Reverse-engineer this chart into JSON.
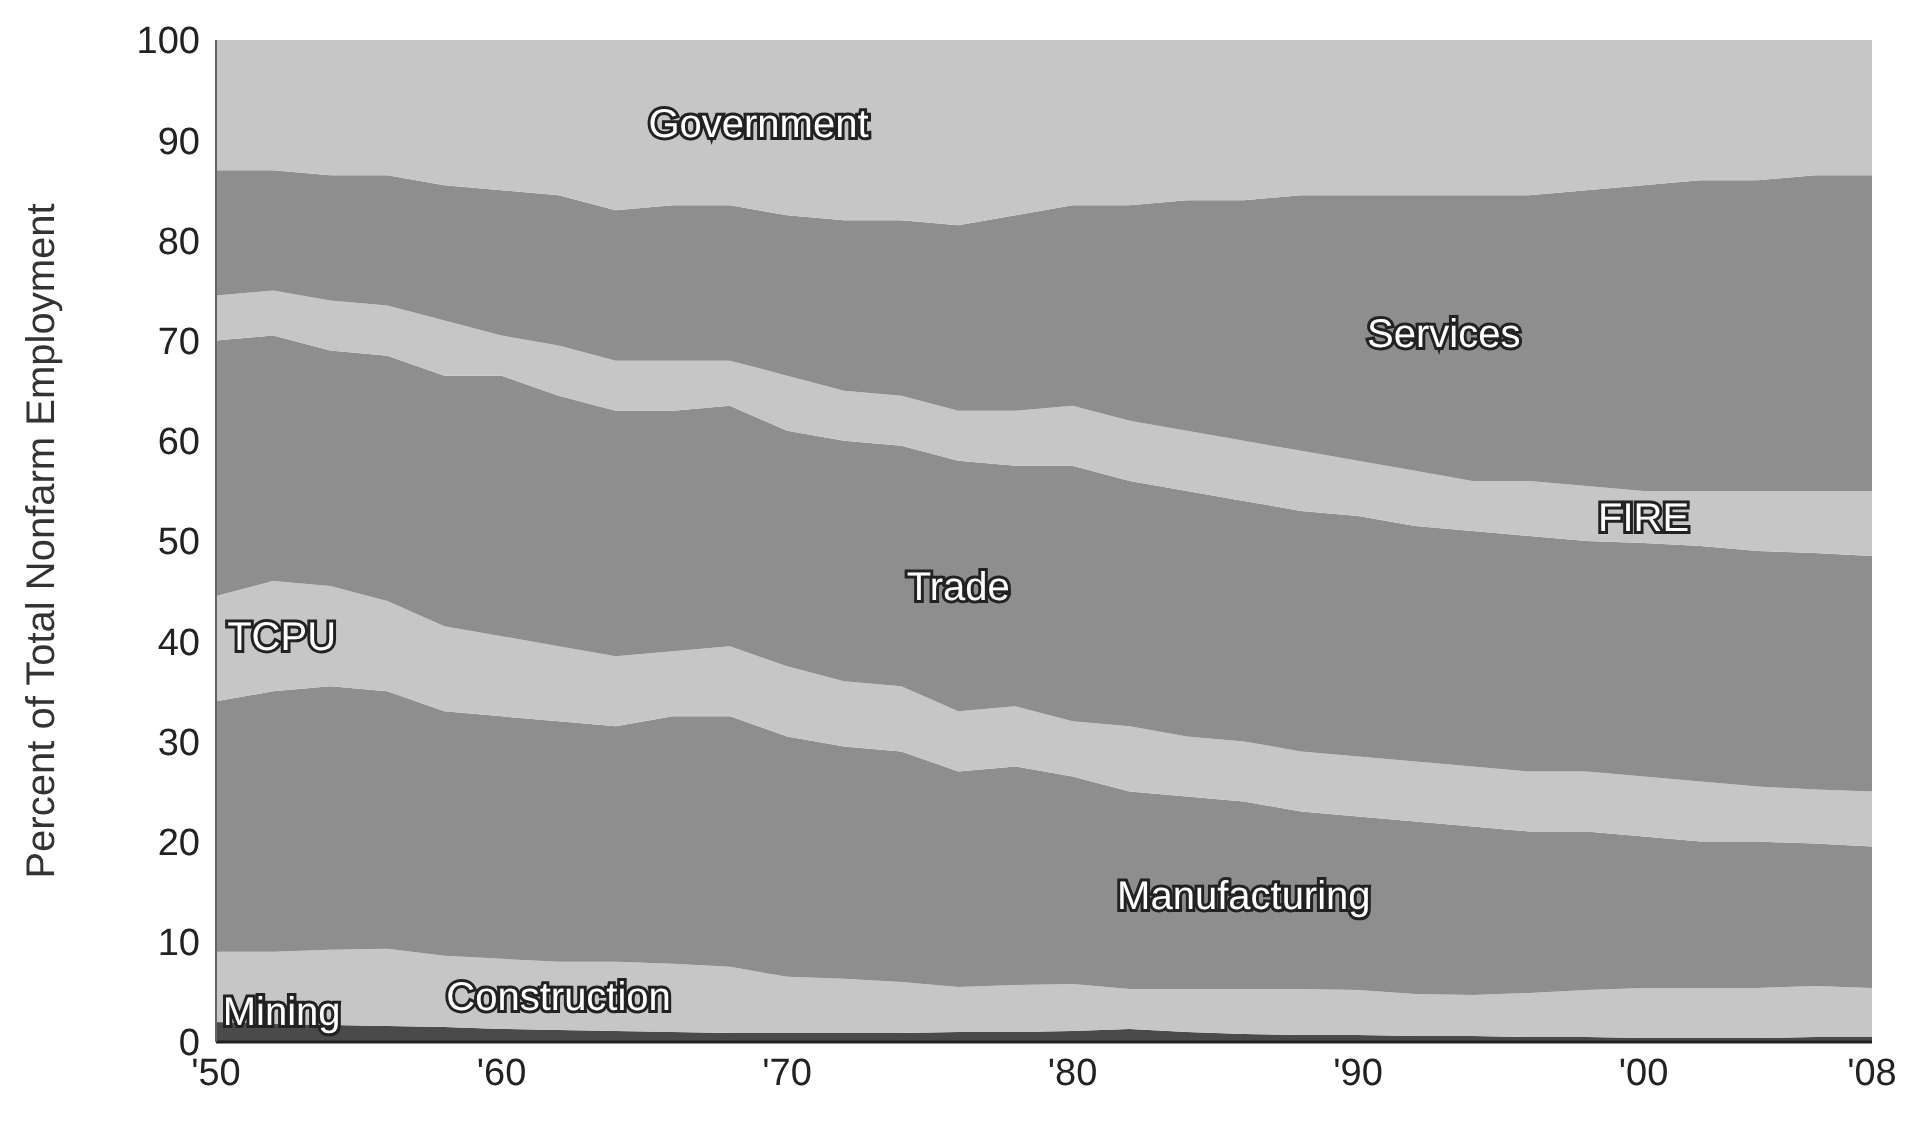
{
  "chart_data": {
    "type": "area",
    "stacked": true,
    "ylabel": "Percent of Total Nonfarm Employment",
    "x": [
      1950,
      1952,
      1954,
      1956,
      1958,
      1960,
      1962,
      1964,
      1966,
      1968,
      1970,
      1972,
      1974,
      1976,
      1978,
      1980,
      1982,
      1984,
      1986,
      1988,
      1990,
      1992,
      1994,
      1996,
      1998,
      2000,
      2002,
      2004,
      2006,
      2008
    ],
    "series": [
      {
        "name": "Mining",
        "color": "#4a4a4a",
        "values": [
          2.0,
          1.8,
          1.7,
          1.6,
          1.5,
          1.3,
          1.2,
          1.1,
          1.0,
          0.9,
          0.9,
          0.9,
          0.9,
          1.0,
          1.0,
          1.1,
          1.3,
          1.0,
          0.8,
          0.7,
          0.7,
          0.6,
          0.6,
          0.5,
          0.5,
          0.4,
          0.4,
          0.4,
          0.5,
          0.5
        ]
      },
      {
        "name": "Construction",
        "color": "#c6c6c6",
        "values": [
          7.0,
          7.2,
          7.5,
          7.7,
          7.1,
          7.0,
          6.8,
          6.9,
          6.8,
          6.6,
          5.6,
          5.4,
          5.1,
          4.5,
          4.7,
          4.7,
          4.0,
          4.3,
          4.5,
          4.6,
          4.5,
          4.2,
          4.1,
          4.4,
          4.7,
          5.0,
          5.0,
          5.0,
          5.1,
          4.9
        ]
      },
      {
        "name": "Manufacturing",
        "color": "#8e8e8e",
        "values": [
          25,
          26,
          26.3,
          25.7,
          24.4,
          24.2,
          24,
          23.5,
          24.7,
          25,
          24,
          23.2,
          23,
          21.5,
          21.8,
          20.7,
          19.7,
          19.2,
          18.7,
          17.7,
          17.3,
          17.2,
          16.8,
          16.1,
          15.8,
          15.1,
          14.6,
          14.6,
          14.2,
          14.1
        ]
      },
      {
        "name": "TCPU",
        "color": "#c6c6c6",
        "values": [
          10.5,
          11,
          10,
          9,
          8.5,
          8,
          7.5,
          7,
          6.5,
          7,
          7,
          6.5,
          6.5,
          6,
          6,
          5.5,
          6.5,
          6,
          6,
          6,
          6,
          6,
          6,
          6,
          6,
          6,
          6,
          5.5,
          5.4,
          5.5
        ]
      },
      {
        "name": "Trade",
        "color": "#8e8e8e",
        "values": [
          25.5,
          24.5,
          23.5,
          24.5,
          25,
          26,
          25,
          24.5,
          24,
          24,
          23.5,
          24,
          24,
          25,
          24,
          25.5,
          24.5,
          24.5,
          24,
          24,
          24,
          23.5,
          23.5,
          23.5,
          23,
          23.3,
          23.5,
          23.5,
          23.6,
          23.5
        ]
      },
      {
        "name": "FIRE",
        "color": "#c6c6c6",
        "values": [
          4.5,
          4.5,
          5,
          5,
          5.5,
          4,
          5,
          5,
          5,
          4.5,
          5.5,
          5,
          5,
          5,
          5.5,
          6,
          6,
          6,
          6,
          6,
          5.5,
          5.5,
          5,
          5.5,
          5.5,
          5.2,
          5.5,
          6,
          6.2,
          6.5
        ]
      },
      {
        "name": "Services",
        "color": "#8e8e8e",
        "values": [
          12.5,
          12,
          12.5,
          13,
          13.5,
          14.5,
          15,
          15,
          15.5,
          15.5,
          16,
          17,
          17.5,
          18.5,
          19.5,
          20,
          21.5,
          23,
          24,
          25.5,
          26.5,
          27.5,
          28.5,
          28.5,
          29.5,
          30.5,
          31,
          31,
          31.5,
          31.5
        ]
      },
      {
        "name": "Government",
        "color": "#c6c6c6",
        "values": [
          13,
          13,
          13.5,
          13.5,
          14.5,
          15,
          15.5,
          17,
          16.5,
          16.5,
          17.5,
          18,
          18,
          18.5,
          17.5,
          16.5,
          16.5,
          16,
          16,
          15.5,
          15.5,
          15.5,
          15.5,
          15.5,
          15,
          14.5,
          14,
          14,
          13.5,
          13.5
        ]
      }
    ],
    "xlim": [
      1950,
      2008
    ],
    "xticks": [
      {
        "value": 1950,
        "label": "'50"
      },
      {
        "value": 1960,
        "label": "'60"
      },
      {
        "value": 1970,
        "label": "'70"
      },
      {
        "value": 1980,
        "label": "'80"
      },
      {
        "value": 1990,
        "label": "'90"
      },
      {
        "value": 2000,
        "label": "'00"
      },
      {
        "value": 2008,
        "label": "'08"
      }
    ],
    "ylim": [
      0,
      100
    ],
    "yticks": [
      0,
      10,
      20,
      30,
      40,
      50,
      60,
      70,
      80,
      90,
      100
    ],
    "grid": false,
    "legend": false
  }
}
